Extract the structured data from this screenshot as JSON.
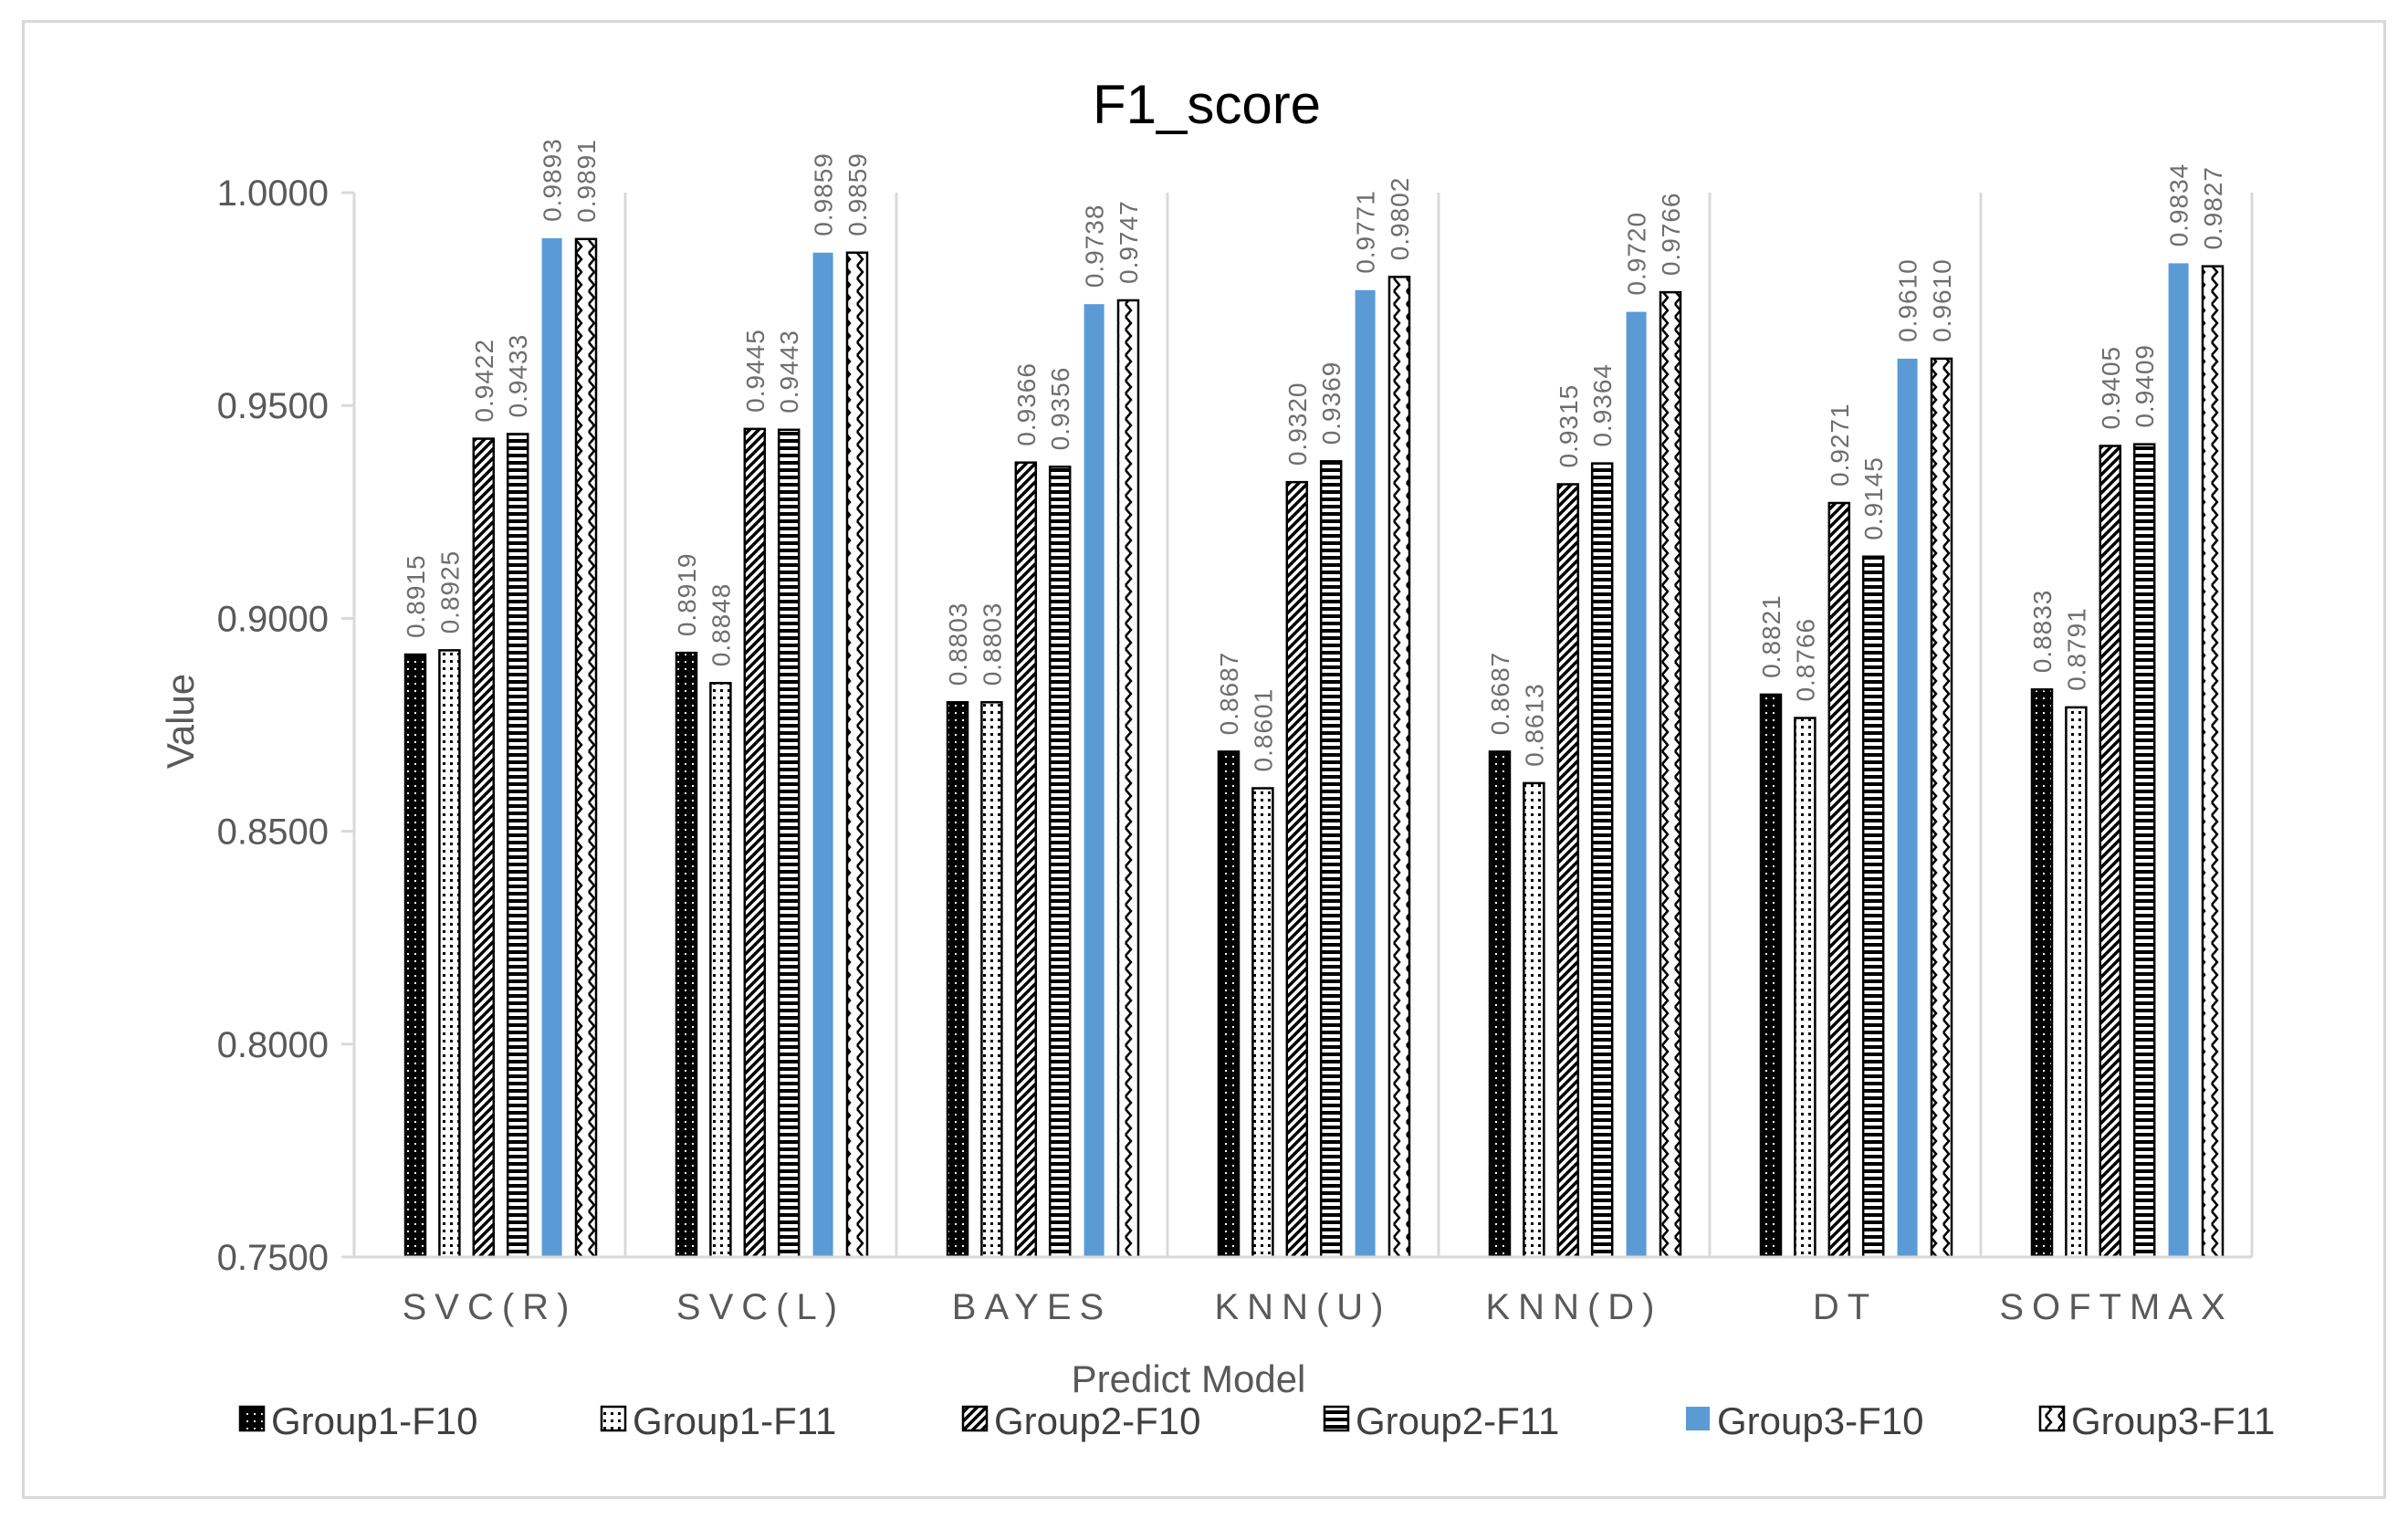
{
  "chart_data": {
    "type": "bar",
    "title": "F1_score",
    "xlabel": "Predict Model",
    "ylabel": "Value",
    "ylim": [
      0.75,
      1.0
    ],
    "yticks": [
      "0.7500",
      "0.8000",
      "0.8500",
      "0.9000",
      "0.9500",
      "1.0000"
    ],
    "yticks_values": [
      0.75,
      0.8,
      0.85,
      0.9,
      0.95,
      1.0
    ],
    "categories": [
      "SVC(R)",
      "SVC(L)",
      "BAYES",
      "KNN(U)",
      "KNN(D)",
      "DT",
      "SOFTMAX"
    ],
    "series": [
      {
        "name": "Group1-F10",
        "values": [
          0.8915,
          0.8919,
          0.8803,
          0.8687,
          0.8687,
          0.8821,
          0.8833
        ],
        "labels": [
          "0.8915",
          "0.8919",
          "0.8803",
          "0.8687",
          "0.8687",
          "0.8821",
          "0.8833"
        ],
        "pattern": "dots-dark"
      },
      {
        "name": "Group1-F11",
        "values": [
          0.8925,
          0.8848,
          0.8803,
          0.8601,
          0.8613,
          0.8766,
          0.8791
        ],
        "labels": [
          "0.8925",
          "0.8848",
          "0.8803",
          "0.8601",
          "0.8613",
          "0.8766",
          "0.8791"
        ],
        "pattern": "dots-light"
      },
      {
        "name": "Group2-F10",
        "values": [
          0.9422,
          0.9445,
          0.9366,
          0.932,
          0.9315,
          0.9271,
          0.9405
        ],
        "labels": [
          "0.9422",
          "0.9445",
          "0.9366",
          "0.9320",
          "0.9315",
          "0.9271",
          "0.9405"
        ],
        "pattern": "diagonal"
      },
      {
        "name": "Group2-F11",
        "values": [
          0.9433,
          0.9443,
          0.9356,
          0.9369,
          0.9364,
          0.9145,
          0.9409
        ],
        "labels": [
          "0.9433",
          "0.9443",
          "0.9356",
          "0.9369",
          "0.9364",
          "0.9145",
          "0.9409"
        ],
        "pattern": "horizontal"
      },
      {
        "name": "Group3-F10",
        "values": [
          0.9893,
          0.9859,
          0.9738,
          0.9771,
          0.972,
          0.961,
          0.9834
        ],
        "labels": [
          "0.9893",
          "0.9859",
          "0.9738",
          "0.9771",
          "0.9720",
          "0.9610",
          "0.9834"
        ],
        "pattern": "solid"
      },
      {
        "name": "Group3-F11",
        "values": [
          0.9891,
          0.9859,
          0.9747,
          0.9802,
          0.9766,
          0.961,
          0.9827
        ],
        "labels": [
          "0.9891",
          "0.9859",
          "0.9747",
          "0.9802",
          "0.9766",
          "0.9610",
          "0.9827"
        ],
        "pattern": "zigzag"
      }
    ],
    "grid": "vertical-category-separators",
    "legend_position": "bottom",
    "colors": {
      "bar_dark": "#000000",
      "bar_blue": "#5b9bd5",
      "grid": "#d9d9d9",
      "text": "#595959"
    }
  }
}
